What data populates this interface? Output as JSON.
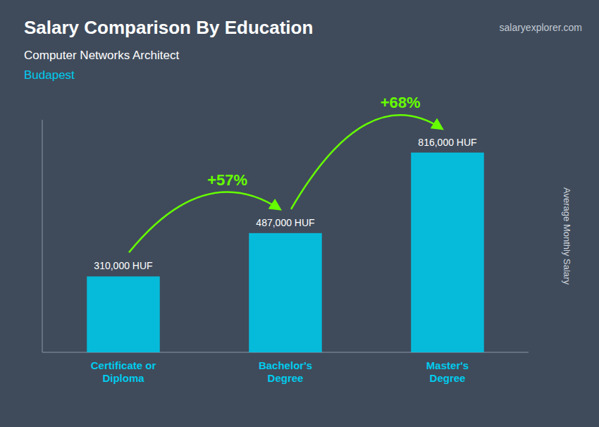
{
  "chart_data": {
    "type": "bar",
    "title": "Salary Comparison By Education",
    "subtitle": [
      "Computer Networks Architect",
      "Budapest"
    ],
    "ylabel": "Average Monthly Salary",
    "categories": [
      "Certificate or\nDiploma",
      "Bachelor's\nDegree",
      "Master's\nDegree"
    ],
    "values": [
      310000,
      487000,
      816000
    ],
    "value_labels": [
      "310,000 HUF",
      "487,000 HUF",
      "816,000 HUF"
    ],
    "data_labels": true,
    "color": "#00c8e8",
    "ylim": [
      0,
      950000
    ],
    "grid": false,
    "tick_labels": "x",
    "annotations": [
      {
        "text": "+57%",
        "from": 0,
        "to": 1,
        "color": "#66ff00"
      },
      {
        "text": "+68%",
        "from": 1,
        "to": 2,
        "color": "#66ff00"
      },
      {
        "text": "salaryexplorer.com"
      }
    ]
  }
}
